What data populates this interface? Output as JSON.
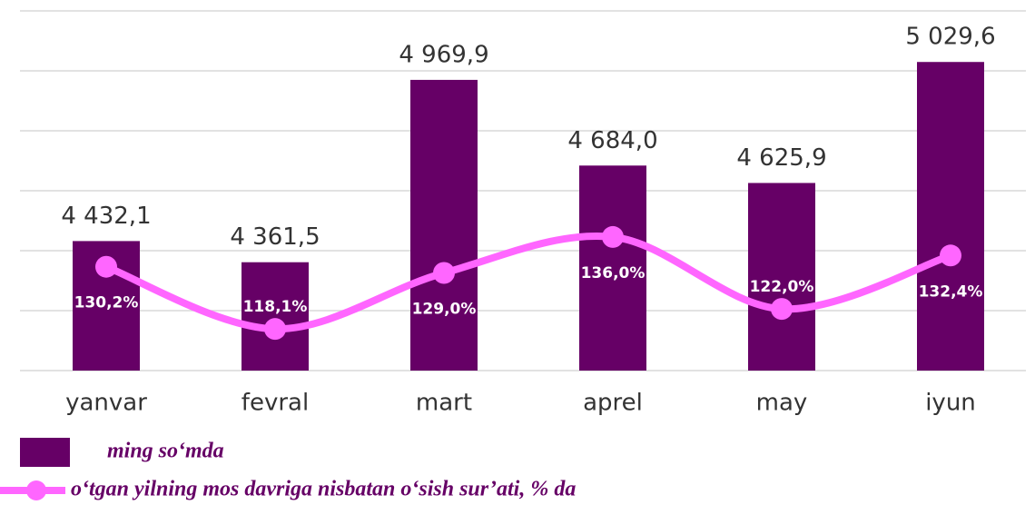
{
  "chart_data": {
    "type": "bar_line",
    "categories": [
      "yanvar",
      "fevral",
      "mart",
      "aprel",
      "may",
      "iyun"
    ],
    "series": [
      {
        "name": "ming so‘mda",
        "type": "bar",
        "color": "#660066",
        "values": [
          4432.1,
          4361.5,
          4969.9,
          4684.0,
          4625.9,
          5029.6
        ],
        "value_labels": [
          "4 432,1",
          "4 361,5",
          "4 969,9",
          "4 684,0",
          "4 625,9",
          "5 029,6"
        ]
      },
      {
        "name": "o‘tgan yilning mos davriga nisbatan o‘sish sur’ati, % da",
        "type": "line",
        "axis": "y2",
        "color": "#ff66ff",
        "values": [
          130.2,
          118.1,
          129.0,
          136.0,
          122.0,
          132.4
        ],
        "value_labels": [
          "130,2%",
          "118,1%",
          "129,0%",
          "136,0%",
          "122,0%",
          "132,4%"
        ]
      }
    ],
    "ylim": [
      4000,
      5200
    ],
    "yticks": [
      4000,
      4200,
      4400,
      4600,
      4800,
      5000,
      5200
    ],
    "y2lim": [
      110,
      180
    ],
    "grid": true
  }
}
